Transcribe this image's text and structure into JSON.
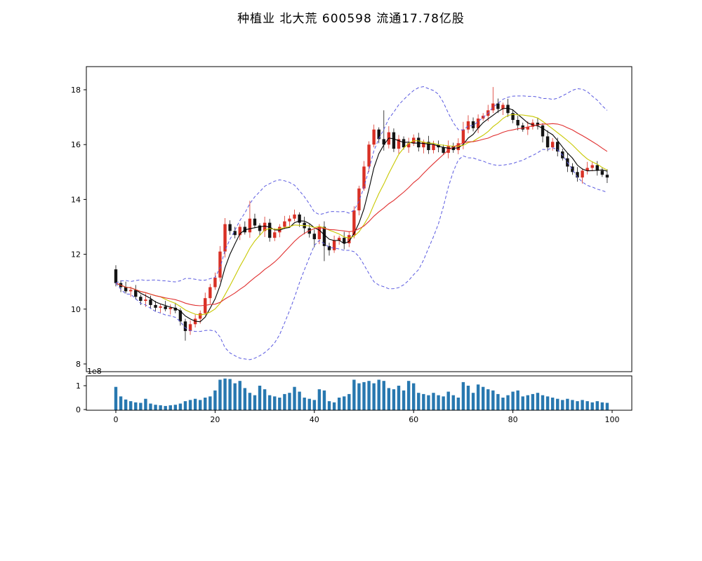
{
  "title": "种植业 北大荒 600598 流通17.78亿股",
  "chart_data": {
    "type": "candlestick+volume",
    "title": "种植业 北大荒 600598 流通17.78亿股",
    "axes": {
      "price_ticks": [
        8,
        10,
        12,
        14,
        16,
        18
      ],
      "x_ticks": [
        0,
        20,
        40,
        60,
        80,
        100
      ],
      "volume_ticks": [
        0,
        1
      ],
      "volume_offset_label": "1e8"
    },
    "overlays": [
      {
        "name": "MA5",
        "window": 5,
        "color": "#000000",
        "style": "solid"
      },
      {
        "name": "MA10",
        "window": 10,
        "color": "#c8c800",
        "style": "solid"
      },
      {
        "name": "MA20",
        "window": 20,
        "color": "#e03030",
        "style": "solid"
      },
      {
        "name": "BOLL-upper",
        "window": 20,
        "mult": 2,
        "color": "#5a5ae0",
        "style": "dashed"
      },
      {
        "name": "BOLL-lower",
        "window": 20,
        "mult": -2,
        "color": "#5a5ae0",
        "style": "dashed"
      }
    ],
    "colors": {
      "up": "#d93025",
      "down": "#141414",
      "volume_bar": "#2878b0"
    },
    "ohlc": {
      "open": [
        11.45,
        10.95,
        10.8,
        10.65,
        10.7,
        10.45,
        10.3,
        10.35,
        10.15,
        10.05,
        10.1,
        10.0,
        10.05,
        9.95,
        9.55,
        9.2,
        9.45,
        9.65,
        9.85,
        10.4,
        10.8,
        11.15,
        12.1,
        13.1,
        12.85,
        12.7,
        13.0,
        12.8,
        13.3,
        13.05,
        12.85,
        13.15,
        12.6,
        12.8,
        13.0,
        13.2,
        13.3,
        13.45,
        13.15,
        12.95,
        12.75,
        12.55,
        13.0,
        12.3,
        12.15,
        12.5,
        12.6,
        12.4,
        12.7,
        13.6,
        14.4,
        15.2,
        16.0,
        16.55,
        16.2,
        16.0,
        16.45,
        15.85,
        16.2,
        15.9,
        16.05,
        16.25,
        15.9,
        16.1,
        15.8,
        16.0,
        15.9,
        15.7,
        15.95,
        15.8,
        16.05,
        16.55,
        16.85,
        16.6,
        16.95,
        17.05,
        17.25,
        17.5,
        17.3,
        17.45,
        17.15,
        16.9,
        16.7,
        16.55,
        16.65,
        16.8,
        16.7,
        16.3,
        15.9,
        16.1,
        15.75,
        15.5,
        15.2,
        15.0,
        14.8,
        15.05,
        15.15,
        15.25,
        15.05,
        14.9
      ],
      "high": [
        11.6,
        11.05,
        11.0,
        10.82,
        10.88,
        10.53,
        10.57,
        10.49,
        10.3,
        10.2,
        10.3,
        10.17,
        10.23,
        10.03,
        9.65,
        9.59,
        9.8,
        9.95,
        10.6,
        10.92,
        11.33,
        12.3,
        13.32,
        13.24,
        13.0,
        13.1,
        13.2,
        13.95,
        13.48,
        13.13,
        13.37,
        13.29,
        12.95,
        13.1,
        13.4,
        13.42,
        13.63,
        13.53,
        13.37,
        13.09,
        12.9,
        13.1,
        13.2,
        12.42,
        12.68,
        12.68,
        12.82,
        12.84,
        13.75,
        14.5,
        15.4,
        16.12,
        16.73,
        16.63,
        17.25,
        16.67,
        16.59,
        16.35,
        16.3,
        16.25,
        16.37,
        16.43,
        16.18,
        16.32,
        16.14,
        16.15,
        16.0,
        16.15,
        16.07,
        16.23,
        16.83,
        17.07,
        16.99,
        17.1,
        17.15,
        17.45,
        18.1,
        17.68,
        17.53,
        17.67,
        17.29,
        17.05,
        16.8,
        16.85,
        16.92,
        16.98,
        16.78,
        16.52,
        16.24,
        16.25,
        15.85,
        15.7,
        15.32,
        15.18,
        15.13,
        15.37,
        15.39,
        15.4,
        15.15,
        15.1
      ],
      "low": [
        10.83,
        10.62,
        10.57,
        10.45,
        10.35,
        10.15,
        10.08,
        10.01,
        9.93,
        9.87,
        9.92,
        9.8,
        9.85,
        9.4,
        8.85,
        9.06,
        9.33,
        9.47,
        9.77,
        10.2,
        10.7,
        11.0,
        11.88,
        12.71,
        12.58,
        12.52,
        12.72,
        12.6,
        12.95,
        12.7,
        12.63,
        12.46,
        12.48,
        12.62,
        12.92,
        13.0,
        13.2,
        13.0,
        12.73,
        12.61,
        12.25,
        12.37,
        11.75,
        11.95,
        12.05,
        12.35,
        12.18,
        12.26,
        12.58,
        13.42,
        14.32,
        15.0,
        15.9,
        16.05,
        15.78,
        15.86,
        15.73,
        15.67,
        15.82,
        15.7,
        15.95,
        15.75,
        15.68,
        15.66,
        15.68,
        15.72,
        15.62,
        15.5,
        15.7,
        15.65,
        15.83,
        16.41,
        16.48,
        16.42,
        16.87,
        16.85,
        17.15,
        17.15,
        17.08,
        17.01,
        16.78,
        16.52,
        16.47,
        16.35,
        16.55,
        16.55,
        16.08,
        15.76,
        15.78,
        15.57,
        15.42,
        15.0,
        14.9,
        14.65,
        14.58,
        14.91,
        15.03,
        14.87,
        14.82,
        14.6
      ],
      "close": [
        10.95,
        10.8,
        10.65,
        10.7,
        10.45,
        10.3,
        10.35,
        10.15,
        10.05,
        10.1,
        10.0,
        10.05,
        9.95,
        9.55,
        9.2,
        9.45,
        9.65,
        9.85,
        10.4,
        10.8,
        11.15,
        12.1,
        13.1,
        12.85,
        12.7,
        13.0,
        12.8,
        13.3,
        13.05,
        12.85,
        13.15,
        12.6,
        12.8,
        13.0,
        13.2,
        13.3,
        13.45,
        13.15,
        12.95,
        12.75,
        12.55,
        13.0,
        12.3,
        12.15,
        12.5,
        12.6,
        12.4,
        12.7,
        13.6,
        14.4,
        15.2,
        16.0,
        16.55,
        16.2,
        16.0,
        16.45,
        15.85,
        16.2,
        15.9,
        16.05,
        16.25,
        15.9,
        16.1,
        15.8,
        16.0,
        15.9,
        15.7,
        15.95,
        15.8,
        16.05,
        16.55,
        16.85,
        16.6,
        16.95,
        17.05,
        17.25,
        17.5,
        17.3,
        17.45,
        17.15,
        16.9,
        16.7,
        16.55,
        16.65,
        16.8,
        16.7,
        16.3,
        15.9,
        16.1,
        15.75,
        15.5,
        15.2,
        15.0,
        14.8,
        15.05,
        15.15,
        15.25,
        15.05,
        14.9,
        14.8
      ]
    },
    "volume_unit": "1e8",
    "volume": [
      0.95,
      0.55,
      0.42,
      0.35,
      0.3,
      0.28,
      0.45,
      0.25,
      0.2,
      0.18,
      0.15,
      0.18,
      0.2,
      0.25,
      0.35,
      0.4,
      0.45,
      0.4,
      0.5,
      0.55,
      0.8,
      1.25,
      1.3,
      1.28,
      1.1,
      1.2,
      0.9,
      0.7,
      0.6,
      1.0,
      0.85,
      0.6,
      0.55,
      0.5,
      0.65,
      0.7,
      0.95,
      0.75,
      0.5,
      0.45,
      0.4,
      0.85,
      0.8,
      0.35,
      0.3,
      0.5,
      0.55,
      0.65,
      1.25,
      1.1,
      1.15,
      1.2,
      1.1,
      1.25,
      1.2,
      0.9,
      0.85,
      1.0,
      0.8,
      1.2,
      1.1,
      0.7,
      0.65,
      0.6,
      0.7,
      0.6,
      0.55,
      0.75,
      0.6,
      0.5,
      1.15,
      1.0,
      0.7,
      1.05,
      0.95,
      0.85,
      0.8,
      0.65,
      0.5,
      0.6,
      0.75,
      0.8,
      0.55,
      0.6,
      0.65,
      0.7,
      0.6,
      0.55,
      0.5,
      0.45,
      0.4,
      0.45,
      0.4,
      0.35,
      0.4,
      0.35,
      0.3,
      0.35,
      0.3,
      0.28
    ]
  }
}
